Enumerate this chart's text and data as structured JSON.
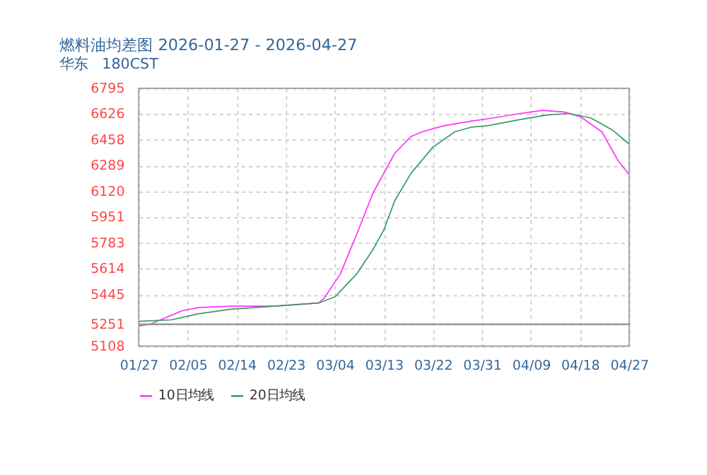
{
  "chart_data": {
    "type": "line",
    "title": "燃料油均差图 2026-01-27 - 2026-04-27",
    "subtitle": "华东　180CST",
    "xlim": [
      "2026-01-27",
      "2026-04-27"
    ],
    "xticks": [
      {
        "value": "2026-01-27",
        "label": "01/27"
      },
      {
        "value": "2026-02-05",
        "label": "02/05"
      },
      {
        "value": "2026-02-14",
        "label": "02/14"
      },
      {
        "value": "2026-02-23",
        "label": "02/23"
      },
      {
        "value": "2026-03-04",
        "label": "03/04"
      },
      {
        "value": "2026-03-13",
        "label": "03/13"
      },
      {
        "value": "2026-03-22",
        "label": "03/22"
      },
      {
        "value": "2026-03-31",
        "label": "03/31"
      },
      {
        "value": "2026-04-09",
        "label": "04/09"
      },
      {
        "value": "2026-04-18",
        "label": "04/18"
      },
      {
        "value": "2026-04-27",
        "label": "04/27"
      }
    ],
    "ylim": [
      5108,
      6795
    ],
    "yticks": [
      5108,
      5251,
      5445,
      5614,
      5783,
      5951,
      6120,
      6289,
      6458,
      6626,
      6795
    ],
    "grid": true,
    "legend": "bottom left",
    "marker": "none",
    "line_style": "solid",
    "ref_lines": [
      {
        "axis": "y",
        "value": 5251,
        "color": "#999999"
      }
    ],
    "series": [
      {
        "name": "10日均线",
        "color": "#ff33ff",
        "x": [
          "2026-01-27",
          "2026-01-29",
          "2026-01-31",
          "2026-02-04",
          "2026-02-07",
          "2026-02-13",
          "2026-02-21",
          "2026-03-01",
          "2026-03-02",
          "2026-03-05",
          "2026-03-08",
          "2026-03-11",
          "2026-03-13",
          "2026-03-15",
          "2026-03-18",
          "2026-03-20",
          "2026-03-24",
          "2026-03-29",
          "2026-04-02",
          "2026-04-07",
          "2026-04-11",
          "2026-04-15",
          "2026-04-18",
          "2026-04-22",
          "2026-04-25",
          "2026-04-27"
        ],
        "values": [
          5240,
          5250,
          5280,
          5340,
          5360,
          5370,
          5370,
          5390,
          5420,
          5580,
          5840,
          6110,
          6240,
          6370,
          6480,
          6510,
          6550,
          6580,
          6600,
          6630,
          6650,
          6640,
          6610,
          6510,
          6320,
          6230
        ]
      },
      {
        "name": "20日均线",
        "color": "#3c9a6a",
        "x": [
          "2026-01-27",
          "2026-02-02",
          "2026-02-07",
          "2026-02-13",
          "2026-02-21",
          "2026-03-01",
          "2026-03-04",
          "2026-03-08",
          "2026-03-11",
          "2026-03-13",
          "2026-03-15",
          "2026-03-18",
          "2026-03-22",
          "2026-03-26",
          "2026-03-29",
          "2026-04-01",
          "2026-04-07",
          "2026-04-12",
          "2026-04-16",
          "2026-04-20",
          "2026-04-24",
          "2026-04-27"
        ],
        "values": [
          5270,
          5280,
          5320,
          5350,
          5370,
          5390,
          5430,
          5580,
          5740,
          5870,
          6060,
          6240,
          6410,
          6510,
          6540,
          6550,
          6590,
          6620,
          6630,
          6600,
          6520,
          6430
        ]
      }
    ]
  }
}
